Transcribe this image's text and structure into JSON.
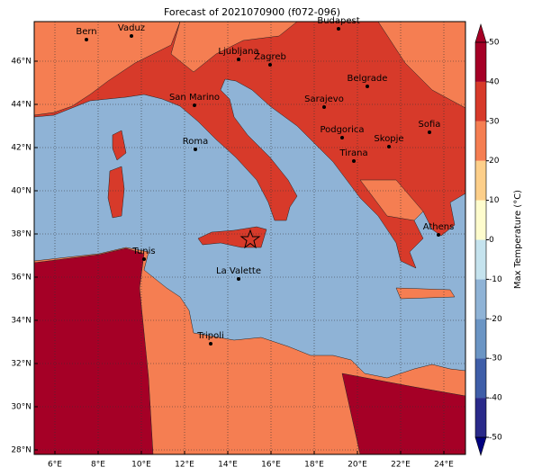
{
  "title": "Forecast of 2021070900 (f072-096)",
  "cities": [
    "Bern",
    "Vaduz",
    "Budapest",
    "Ljubljana",
    "Zagreb",
    "Belgrade",
    "San Marino",
    "Sarajevo",
    "Sofia",
    "Podgorica",
    "Skopje",
    "Roma",
    "Tirana",
    "Athens",
    "Tunis",
    "La Valette",
    "Tripoli"
  ],
  "lon_ticks": [
    "6°E",
    "8°E",
    "10°E",
    "12°E",
    "14°E",
    "16°E",
    "18°E",
    "20°E",
    "22°E",
    "24°E"
  ],
  "lat_ticks": [
    "28°N",
    "30°N",
    "32°N",
    "34°N",
    "36°N",
    "38°N",
    "40°N",
    "42°N",
    "44°N",
    "46°N"
  ],
  "colorbar": {
    "label": "Max Temperature (°C)",
    "ticks": [
      -50,
      -40,
      -30,
      -20,
      -10,
      0,
      10,
      20,
      30,
      40,
      50
    ],
    "colors": [
      "#2a2a8a",
      "#3f5ea8",
      "#6b95c4",
      "#8fb3d6",
      "#c5e3ee",
      "#fefccd",
      "#fdcf8a",
      "#f57e52",
      "#d73a2a",
      "#a50026"
    ]
  }
}
